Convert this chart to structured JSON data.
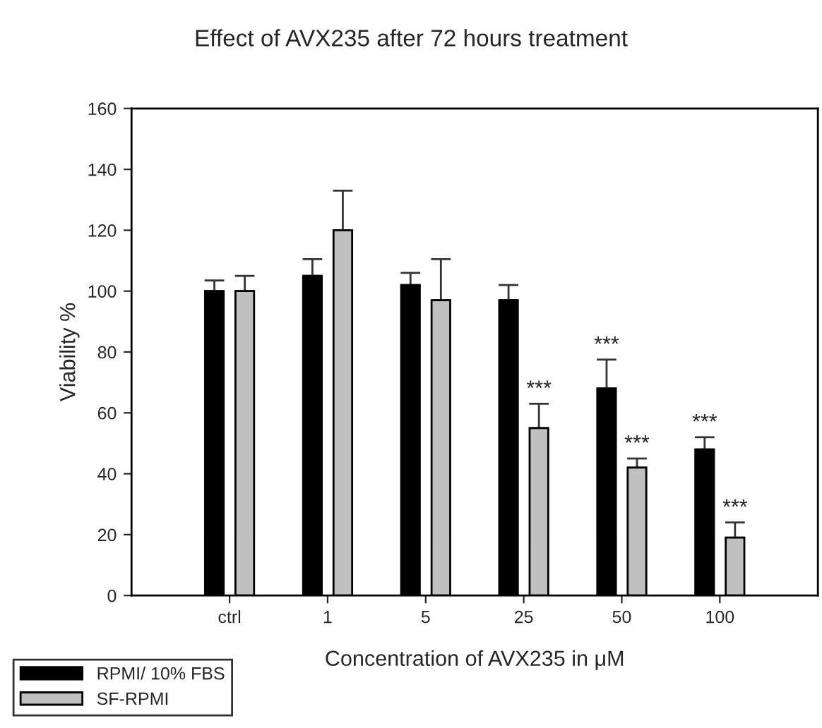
{
  "chart_data": {
    "type": "bar",
    "title": "Effect of AVX235 after 72 hours treatment",
    "xlabel": "Concentration of AVX235 in μM",
    "ylabel": "Viability %",
    "categories": [
      "ctrl",
      "1",
      "5",
      "25",
      "50",
      "100"
    ],
    "series": [
      {
        "name": "RPMI/ 10% FBS",
        "color": "#000000",
        "values": [
          100,
          105,
          102,
          97,
          68,
          48
        ],
        "errors": [
          [
            100,
            103.5
          ],
          [
            105,
            110.5
          ],
          [
            102,
            106
          ],
          [
            97,
            102
          ],
          [
            68,
            77.5
          ],
          [
            48,
            52
          ]
        ]
      },
      {
        "name": "SF-RPMI",
        "color": "#c0c0c0",
        "values": [
          100,
          120,
          97,
          55,
          42,
          19
        ],
        "errors": [
          [
            100,
            105
          ],
          [
            120,
            133
          ],
          [
            97,
            110.5
          ],
          [
            55,
            63
          ],
          [
            42,
            45
          ],
          [
            19,
            24
          ]
        ]
      }
    ],
    "ylim": [
      0,
      160
    ],
    "yticks": [
      0,
      20,
      40,
      60,
      80,
      100,
      120,
      140,
      160
    ],
    "grid": false,
    "legend": "bottom left",
    "annotations": [
      {
        "text": "***",
        "x": "25",
        "y": 55
      },
      {
        "text": "***",
        "x": "50",
        "y": 68
      },
      {
        "text": "***",
        "x": "50",
        "y": 42
      },
      {
        "text": "***",
        "x": "100",
        "y": 48
      },
      {
        "text": "***",
        "x": "100",
        "y": 19
      }
    ]
  }
}
